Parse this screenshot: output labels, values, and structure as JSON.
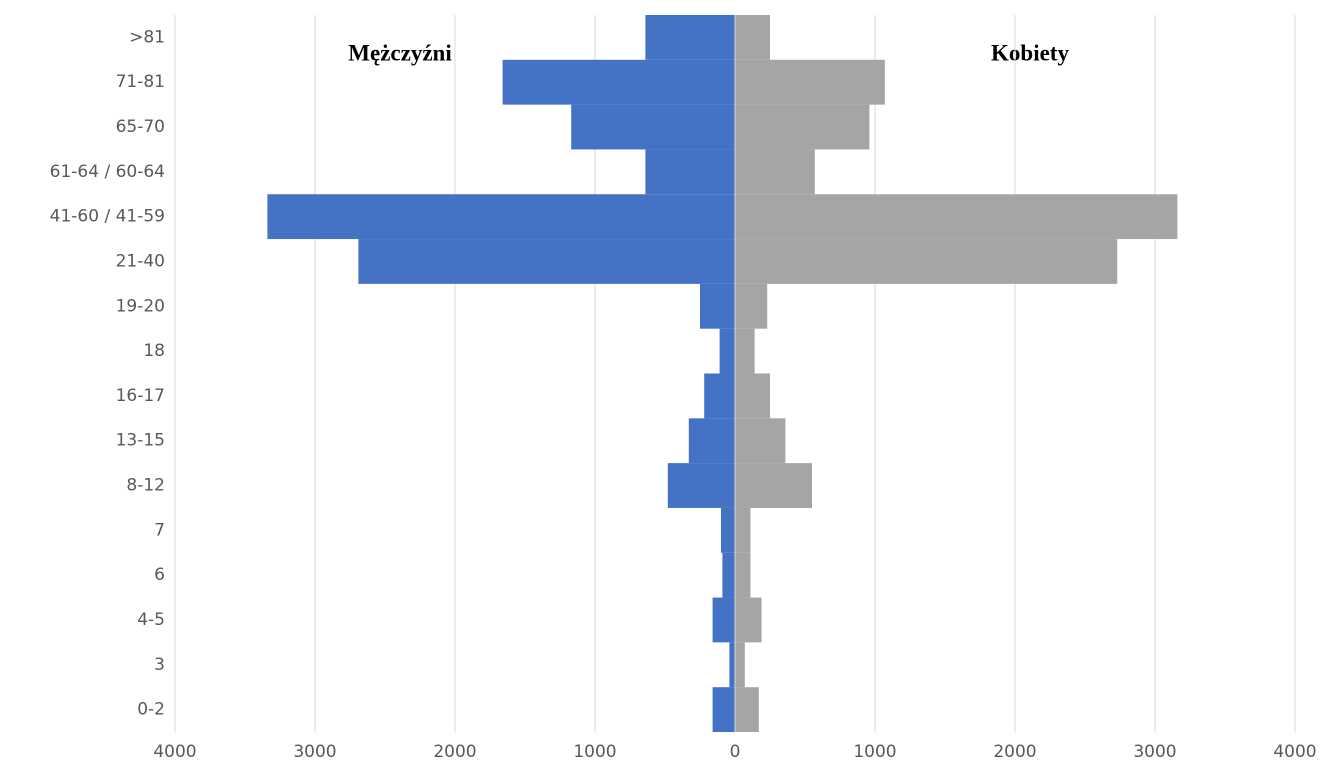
{
  "chart_data": {
    "type": "bar",
    "orientation": "horizontal",
    "stacked": false,
    "categories": [
      "0-2",
      "3",
      "4-5",
      "6",
      "7",
      "8-12",
      "13-15",
      "16-17",
      "18",
      "19-20",
      "21-40",
      "41-60 / 41-59",
      "61-64 / 60-64",
      "65-70",
      "71-81",
      ">81"
    ],
    "series": [
      {
        "name": "Mężczyźni",
        "color": "#4472c4",
        "values": [
          -160,
          -40,
          -160,
          -90,
          -100,
          -480,
          -330,
          -220,
          -110,
          -250,
          -2690,
          -3340,
          -640,
          -1170,
          -1660,
          -640
        ]
      },
      {
        "name": "Kobiety",
        "color": "#a5a5a5",
        "values": [
          170,
          70,
          190,
          110,
          110,
          550,
          360,
          250,
          140,
          230,
          2730,
          3160,
          570,
          960,
          1070,
          250
        ]
      }
    ],
    "xlim": [
      -4000,
      4000
    ],
    "xticks": [
      {
        "value": -4000,
        "label": "4000"
      },
      {
        "value": -3000,
        "label": "3000"
      },
      {
        "value": -2000,
        "label": "2000"
      },
      {
        "value": -1000,
        "label": "1000"
      },
      0,
      1000,
      2000,
      3000,
      4000
    ],
    "grid": true
  }
}
